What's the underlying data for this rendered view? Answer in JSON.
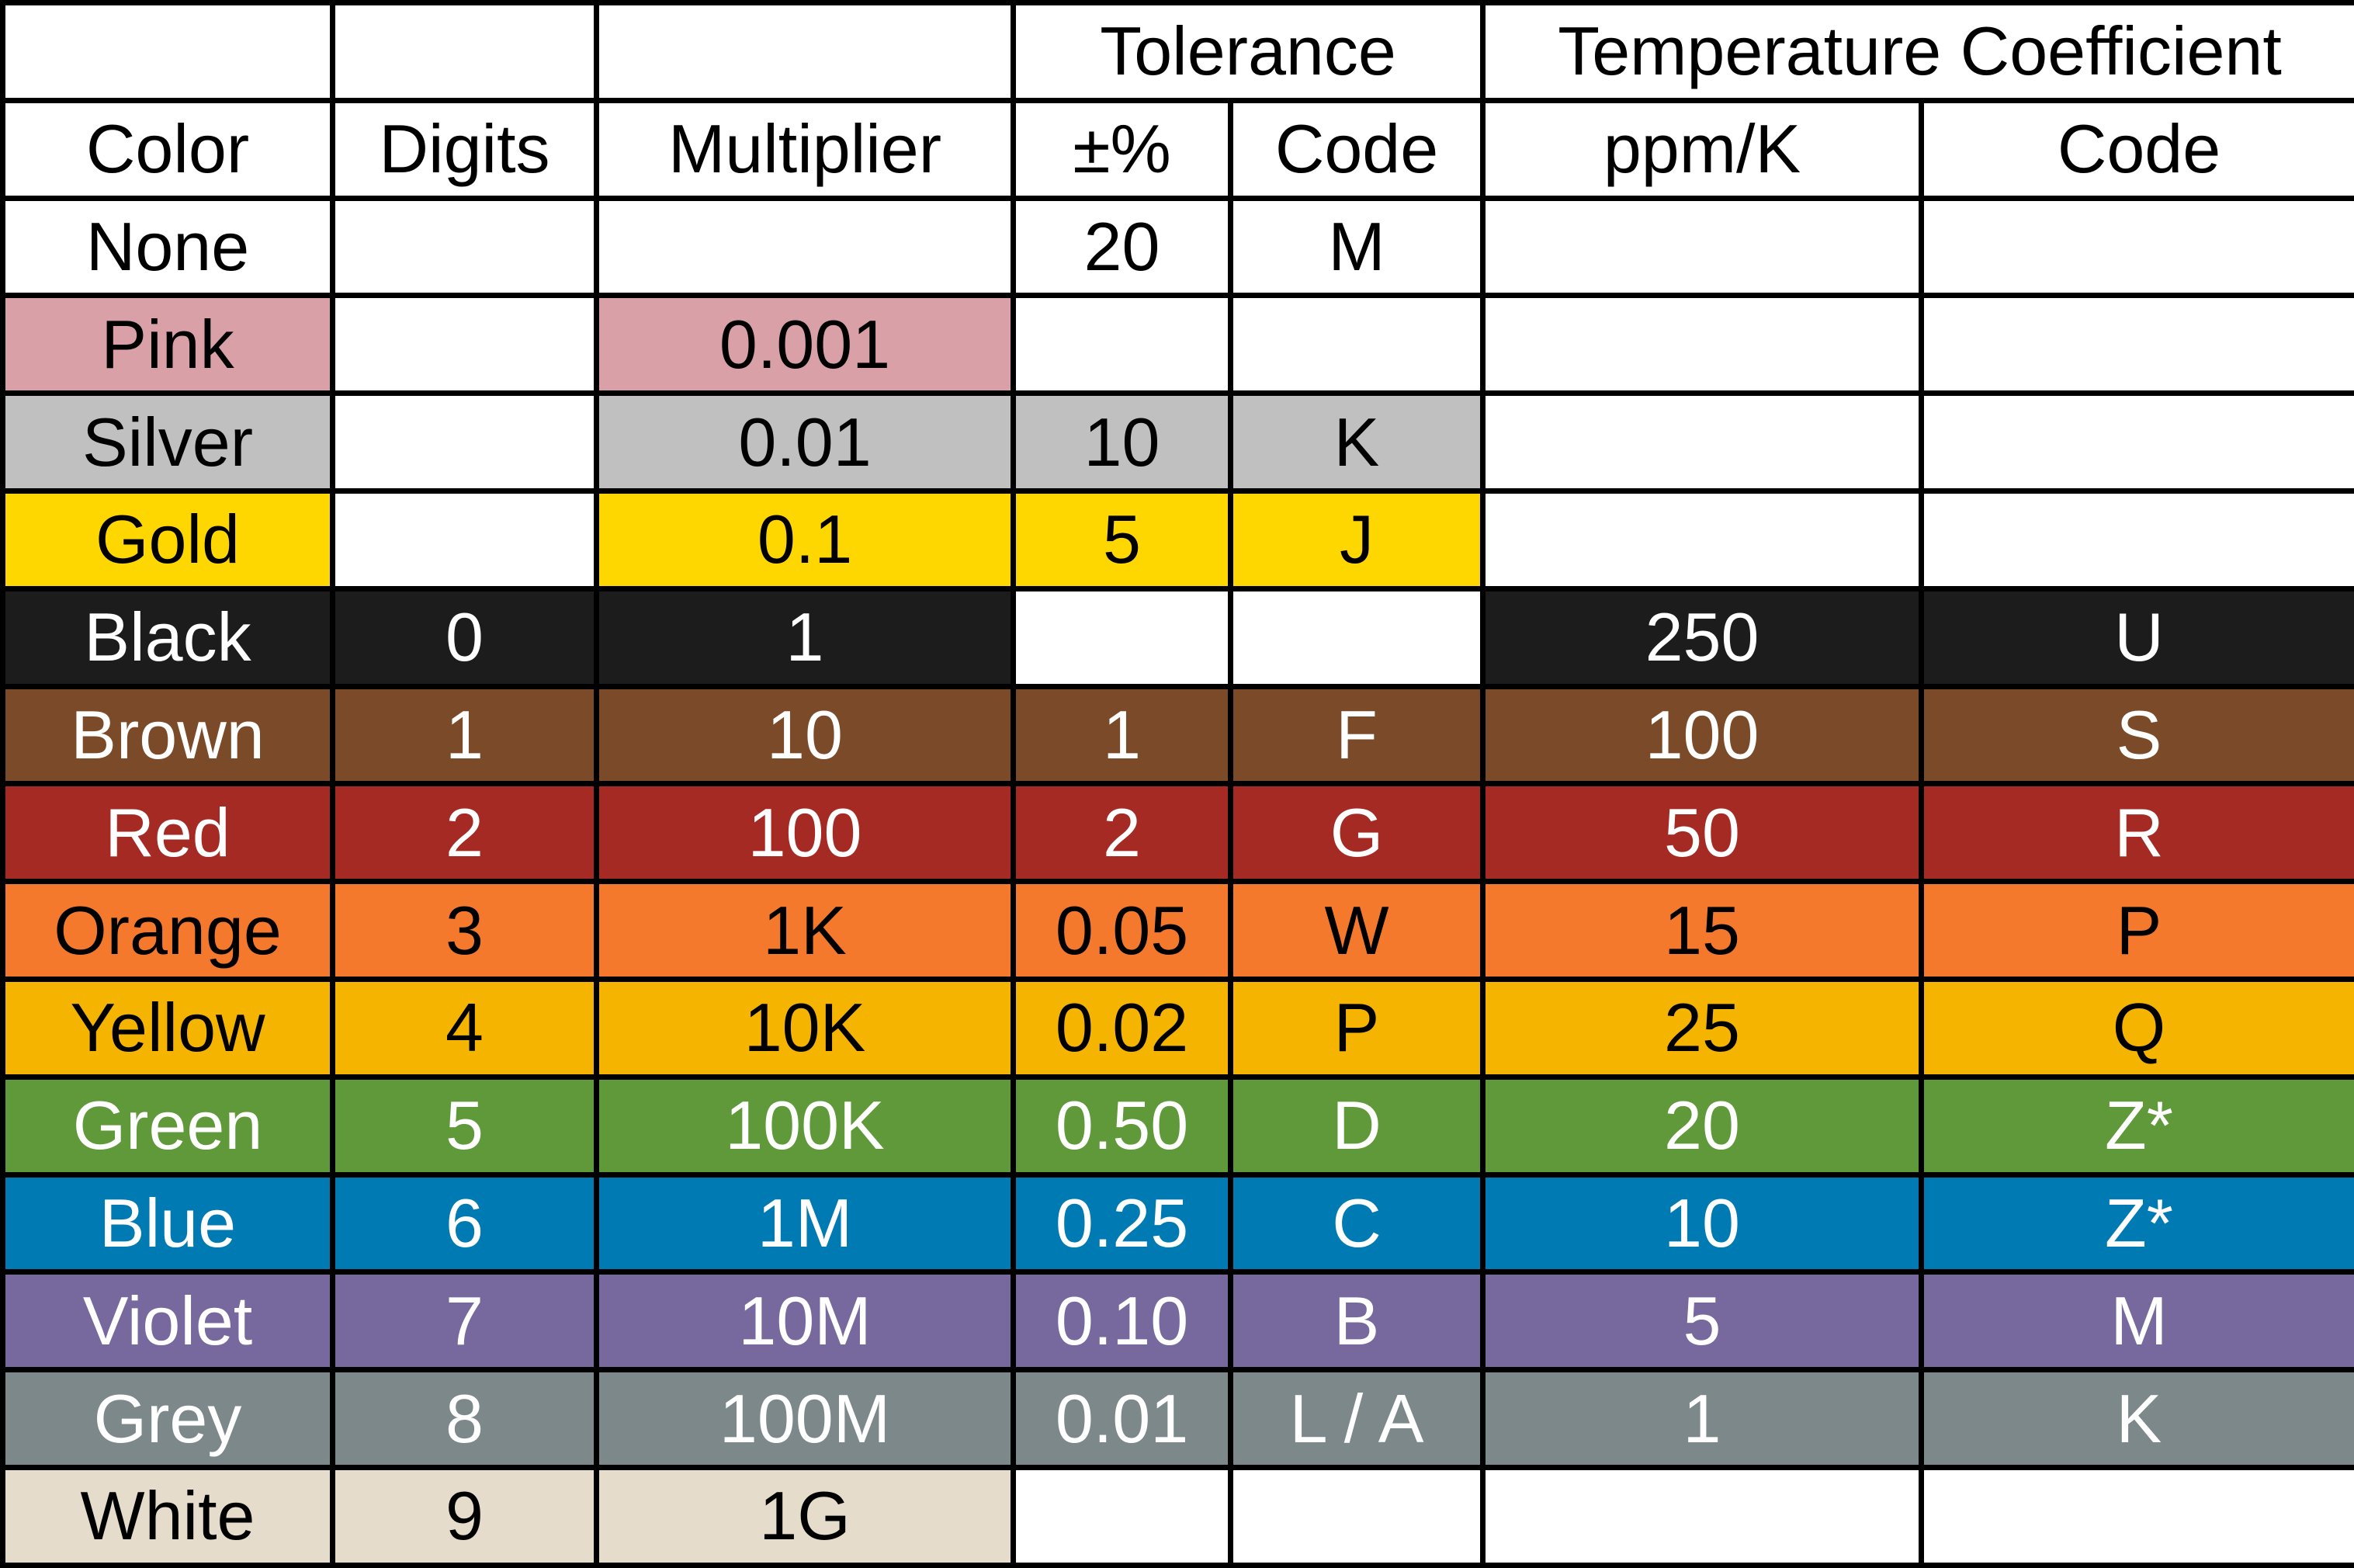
{
  "table": {
    "group_headers": {
      "tolerance": "Tolerance",
      "temperature_coefficient": "Temperature Coefficient"
    },
    "columns": {
      "color": "Color",
      "digits": "Digits",
      "multiplier": "Multiplier",
      "tolerance_percent": "±%",
      "tolerance_code": "Code",
      "tempco_ppm": "ppm/K",
      "tempco_code": "Code"
    },
    "rows": [
      {
        "color": "None",
        "digits": "",
        "multiplier": "",
        "tol_pct": "20",
        "tol_code": "M",
        "ppm": "",
        "tc_code": "",
        "bg": "#ffffff",
        "fg": "#000000",
        "tol_colored": false,
        "tc_colored": false
      },
      {
        "color": "Pink",
        "digits": "",
        "multiplier": "0.001",
        "tol_pct": "",
        "tol_code": "",
        "ppm": "",
        "tc_code": "",
        "bg": "#d9a0a8",
        "fg": "#000000",
        "tol_colored": false,
        "tc_colored": false
      },
      {
        "color": "Silver",
        "digits": "",
        "multiplier": "0.01",
        "tol_pct": "10",
        "tol_code": "K",
        "ppm": "",
        "tc_code": "",
        "bg": "#c0c0c0",
        "fg": "#000000",
        "tol_colored": true,
        "tc_colored": false
      },
      {
        "color": "Gold",
        "digits": "",
        "multiplier": "0.1",
        "tol_pct": "5",
        "tol_code": "J",
        "ppm": "",
        "tc_code": "",
        "bg": "#ffd700",
        "fg": "#000000",
        "tol_colored": true,
        "tc_colored": false
      },
      {
        "color": "Black",
        "digits": "0",
        "multiplier": "1",
        "tol_pct": "",
        "tol_code": "",
        "ppm": "250",
        "tc_code": "U",
        "bg": "#1c1c1c",
        "fg": "#ffffff",
        "tol_colored": false,
        "tc_colored": true
      },
      {
        "color": "Brown",
        "digits": "1",
        "multiplier": "10",
        "tol_pct": "1",
        "tol_code": "F",
        "ppm": "100",
        "tc_code": "S",
        "bg": "#7b4a29",
        "fg": "#ffffff",
        "tol_colored": true,
        "tc_colored": true
      },
      {
        "color": "Red",
        "digits": "2",
        "multiplier": "100",
        "tol_pct": "2",
        "tol_code": "G",
        "ppm": "50",
        "tc_code": "R",
        "bg": "#a62a24",
        "fg": "#ffffff",
        "tol_colored": true,
        "tc_colored": true
      },
      {
        "color": "Orange",
        "digits": "3",
        "multiplier": "1K",
        "tol_pct": "0.05",
        "tol_code": "W",
        "ppm": "15",
        "tc_code": "P",
        "bg": "#f5792d",
        "fg": "#000000",
        "tol_colored": true,
        "tc_colored": true
      },
      {
        "color": "Yellow",
        "digits": "4",
        "multiplier": "10K",
        "tol_pct": "0.02",
        "tol_code": "P",
        "ppm": "25",
        "tc_code": "Q",
        "bg": "#f5b400",
        "fg": "#000000",
        "tol_colored": true,
        "tc_colored": true
      },
      {
        "color": "Green",
        "digits": "5",
        "multiplier": "100K",
        "tol_pct": "0.50",
        "tol_code": "D",
        "ppm": "20",
        "tc_code": "Z*",
        "bg": "#5f9939",
        "fg": "#ffffff",
        "tol_colored": true,
        "tc_colored": true
      },
      {
        "color": "Blue",
        "digits": "6",
        "multiplier": "1M",
        "tol_pct": "0.25",
        "tol_code": "C",
        "ppm": "10",
        "tc_code": "Z*",
        "bg": "#007ab3",
        "fg": "#ffffff",
        "tol_colored": true,
        "tc_colored": true
      },
      {
        "color": "Violet",
        "digits": "7",
        "multiplier": "10M",
        "tol_pct": "0.10",
        "tol_code": "B",
        "ppm": "5",
        "tc_code": "M",
        "bg": "#77699d",
        "fg": "#ffffff",
        "tol_colored": true,
        "tc_colored": true
      },
      {
        "color": "Grey",
        "digits": "8",
        "multiplier": "100M",
        "tol_pct": "0.01",
        "tol_code": "L / A",
        "ppm": "1",
        "tc_code": "K",
        "bg": "#7c8889",
        "fg": "#ffffff",
        "tol_colored": true,
        "tc_colored": true
      },
      {
        "color": "White",
        "digits": "9",
        "multiplier": "1G",
        "tol_pct": "",
        "tol_code": "",
        "ppm": "",
        "tc_code": "",
        "bg": "#e5dccb",
        "fg": "#000000",
        "tol_colored": false,
        "tc_colored": false
      }
    ]
  }
}
